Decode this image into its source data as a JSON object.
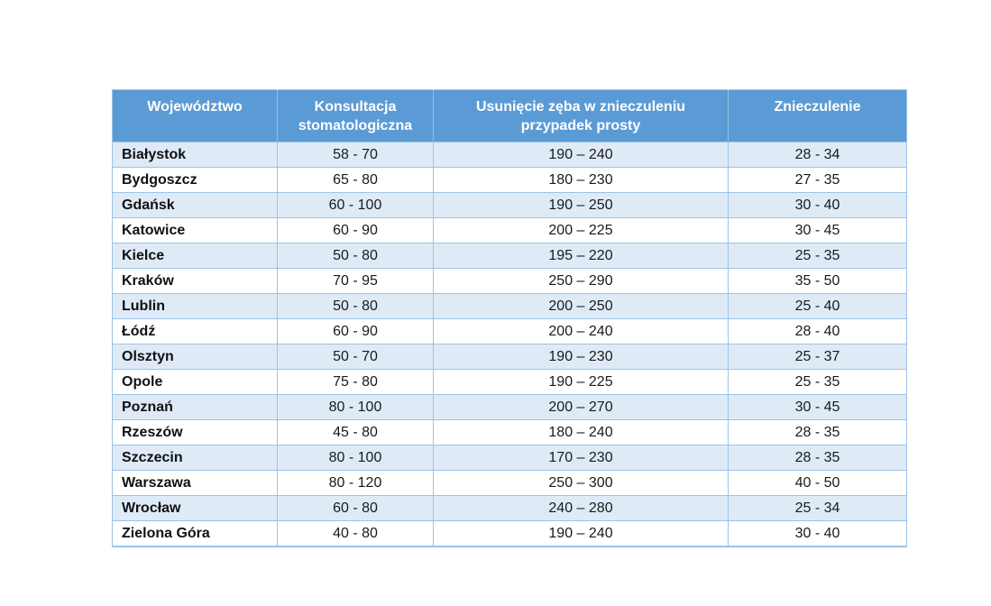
{
  "table": {
    "headers": [
      "Województwo",
      "Konsultacja stomatologiczna",
      "Usunięcie zęba w znieczuleniu przypadek prosty",
      "Znieczulenie"
    ],
    "rows": [
      {
        "city": "Białystok",
        "consultation": "58 - 70",
        "extraction": "190 – 240",
        "anesthesia": "28 - 34"
      },
      {
        "city": "Bydgoszcz",
        "consultation": "65 - 80",
        "extraction": "180 – 230",
        "anesthesia": "27 - 35"
      },
      {
        "city": "Gdańsk",
        "consultation": "60 - 100",
        "extraction": "190 – 250",
        "anesthesia": "30 - 40"
      },
      {
        "city": "Katowice",
        "consultation": "60 - 90",
        "extraction": "200 – 225",
        "anesthesia": "30 - 45"
      },
      {
        "city": "Kielce",
        "consultation": "50 - 80",
        "extraction": "195 – 220",
        "anesthesia": "25 - 35"
      },
      {
        "city": "Kraków",
        "consultation": "70 - 95",
        "extraction": "250 – 290",
        "anesthesia": "35 - 50"
      },
      {
        "city": "Lublin",
        "consultation": "50 - 80",
        "extraction": "200 – 250",
        "anesthesia": "25 - 40"
      },
      {
        "city": "Łódź",
        "consultation": "60 - 90",
        "extraction": "200 – 240",
        "anesthesia": "28 - 40"
      },
      {
        "city": "Olsztyn",
        "consultation": "50 - 70",
        "extraction": "190 – 230",
        "anesthesia": "25 - 37"
      },
      {
        "city": "Opole",
        "consultation": "75 - 80",
        "extraction": "190 – 225",
        "anesthesia": "25 - 35"
      },
      {
        "city": "Poznań",
        "consultation": "80 - 100",
        "extraction": "200 – 270",
        "anesthesia": "30 - 45"
      },
      {
        "city": "Rzeszów",
        "consultation": "45 - 80",
        "extraction": "180 – 240",
        "anesthesia": "28 - 35"
      },
      {
        "city": "Szczecin",
        "consultation": "80 - 100",
        "extraction": "170 – 230",
        "anesthesia": "28 - 35"
      },
      {
        "city": "Warszawa",
        "consultation": "80 - 120",
        "extraction": "250 – 300",
        "anesthesia": "40 - 50"
      },
      {
        "city": "Wrocław",
        "consultation": "60 - 80",
        "extraction": "240 – 280",
        "anesthesia": "25 - 34"
      },
      {
        "city": "Zielona Góra",
        "consultation": "40 - 80",
        "extraction": "190 – 240",
        "anesthesia": "30 - 40"
      }
    ]
  },
  "colors": {
    "header_bg": "#5b9bd5",
    "header_text": "#ffffff",
    "stripe_row_bg": "#deebf7",
    "plain_row_bg": "#ffffff",
    "border": "#9cc3e5",
    "body_text": "#1a1a1a"
  }
}
